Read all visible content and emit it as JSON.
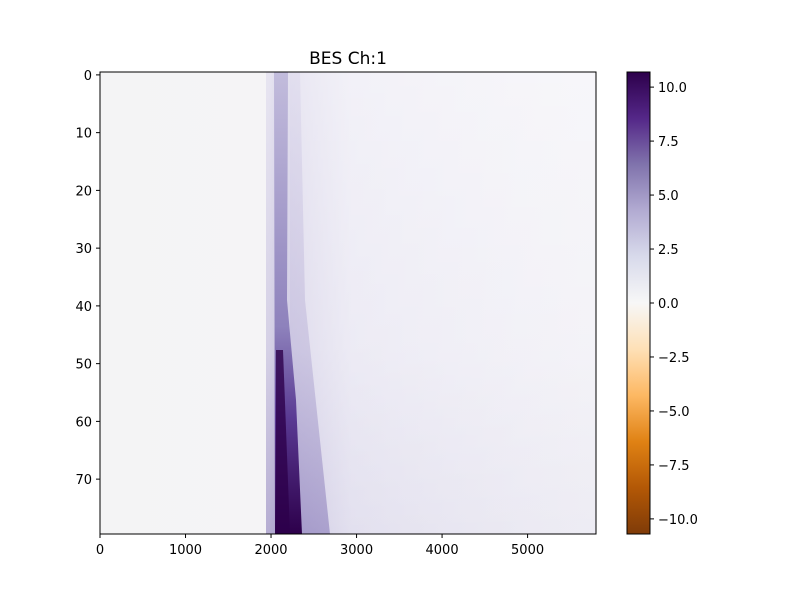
{
  "chart_data": {
    "type": "heatmap",
    "title": "BES Ch:1",
    "xlabel": "",
    "ylabel": "",
    "xlim": [
      0,
      5800
    ],
    "ylim": [
      79.5,
      -0.5
    ],
    "x_ticks": [
      0,
      1000,
      2000,
      3000,
      4000,
      5000
    ],
    "x_tick_labels": [
      "0",
      "1000",
      "2000",
      "3000",
      "4000",
      "5000"
    ],
    "y_ticks": [
      0,
      10,
      20,
      30,
      40,
      50,
      60,
      70
    ],
    "y_tick_labels": [
      "0",
      "10",
      "20",
      "30",
      "40",
      "50",
      "60",
      "70"
    ],
    "colormap": "PuOr",
    "colorbar": {
      "vmin": -10.7,
      "vmax": 10.7,
      "ticks": [
        10.0,
        7.5,
        5.0,
        2.5,
        0.0,
        -2.5,
        -5.0,
        -7.5,
        -10.0
      ],
      "tick_labels": [
        "10.0",
        "7.5",
        "5.0",
        "2.5",
        "0.0",
        "−2.5",
        "−5.0",
        "−7.5",
        "−10.0"
      ]
    },
    "features": [
      {
        "kind": "peak-band",
        "x_center": 2150,
        "rows": [
          0,
          79
        ],
        "value_top": 3,
        "value_bottom": 10.5
      },
      {
        "kind": "diffuse-tail",
        "x_range": [
          2250,
          5800
        ],
        "rows": [
          0,
          79
        ],
        "value": 1.0
      },
      {
        "kind": "background",
        "x_range": [
          0,
          2000
        ],
        "value": 0.0
      }
    ]
  }
}
